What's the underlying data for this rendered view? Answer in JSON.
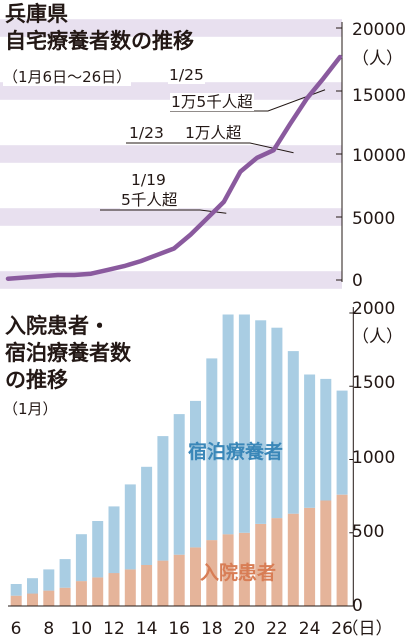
{
  "colors": {
    "band": "#e8e0ef",
    "line": "#8a5a9e",
    "bar_lodging": "#a9cde3",
    "bar_hospital": "#e5b49a",
    "lodging_text": "#3a87b8",
    "hospital_text": "#d87d55",
    "axis": "#231815"
  },
  "top": {
    "title_line1": "兵庫県",
    "title_line2": "自宅療養者数の推移",
    "period": "（1月6日～26日）",
    "unit": "（人）",
    "y_ticks": [
      "20000",
      "15000",
      "10000",
      "5000",
      "0"
    ],
    "annotations": [
      {
        "date": "1/25",
        "text": "1万5千人超"
      },
      {
        "date": "1/23",
        "text": "1万人超"
      },
      {
        "date": "1/19",
        "text": "5千人超"
      }
    ]
  },
  "bottom": {
    "title_line1": "入院患者・",
    "title_line2": "宿泊療養者数",
    "title_line3": "の推移",
    "period": "（1月）",
    "unit": "（人）",
    "y_ticks": [
      "2000",
      "1500",
      "1000",
      "500",
      "0"
    ],
    "x_ticks": [
      "6",
      "8",
      "10",
      "12",
      "14",
      "16",
      "18",
      "20",
      "22",
      "24",
      "26"
    ],
    "x_unit": "（日）",
    "legend_lodging": "宿泊療養者",
    "legend_hospital": "入院患者"
  },
  "chart_data": [
    {
      "type": "line",
      "title": "兵庫県 自宅療養者数の推移",
      "subtitle": "（1月6日～26日）",
      "ylabel": "（人）",
      "ylim": [
        0,
        20000
      ],
      "x": [
        6,
        7,
        8,
        9,
        10,
        11,
        12,
        13,
        14,
        15,
        16,
        17,
        18,
        19,
        20,
        21,
        22,
        23,
        24,
        25,
        26
      ],
      "series": [
        {
          "values": [
            100,
            200,
            300,
            400,
            400,
            500,
            800,
            1100,
            1500,
            2000,
            2500,
            3600,
            4900,
            6200,
            8600,
            9700,
            10300,
            12400,
            14400,
            16000,
            17700
          ]
        }
      ],
      "annotations": [
        "1/25 1万5千人超",
        "1/23 1万人超",
        "1/19 5千人超"
      ]
    },
    {
      "type": "bar",
      "stacked": true,
      "title": "入院患者・宿泊療養者数の推移",
      "subtitle": "（1月）",
      "ylabel": "（人）",
      "xlabel": "（日）",
      "ylim": [
        0,
        2000
      ],
      "categories": [
        "6",
        "7",
        "8",
        "9",
        "10",
        "11",
        "12",
        "13",
        "14",
        "15",
        "16",
        "17",
        "18",
        "19",
        "20",
        "21",
        "22",
        "23",
        "24",
        "25",
        "26"
      ],
      "series": [
        {
          "name": "入院患者",
          "values": [
            70,
            85,
            105,
            125,
            170,
            195,
            225,
            250,
            280,
            310,
            350,
            400,
            450,
            490,
            500,
            560,
            600,
            630,
            670,
            720,
            760
          ]
        },
        {
          "name": "宿泊療養者",
          "values": [
            80,
            105,
            145,
            195,
            320,
            385,
            455,
            580,
            670,
            850,
            960,
            1000,
            1240,
            1500,
            1490,
            1390,
            1300,
            1110,
            910,
            830,
            710
          ]
        }
      ]
    }
  ]
}
